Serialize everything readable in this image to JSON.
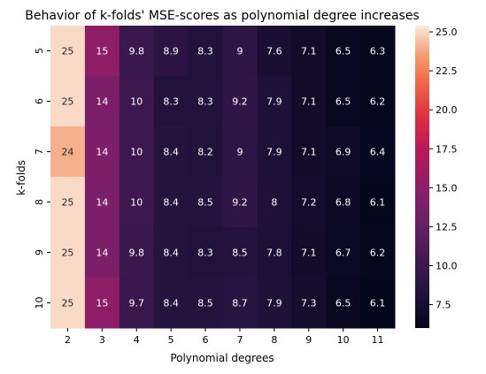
{
  "chart_data": {
    "type": "heatmap",
    "title": "Behavior of k-folds' MSE-scores as polynomial degree increases",
    "xlabel": "Polynomial degrees",
    "ylabel": "k-folds",
    "x": [
      "2",
      "3",
      "4",
      "5",
      "6",
      "7",
      "8",
      "9",
      "10",
      "11"
    ],
    "y": [
      "5",
      "6",
      "7",
      "8",
      "9",
      "10"
    ],
    "values": [
      [
        25,
        15,
        9.8,
        8.9,
        8.3,
        9,
        7.6,
        7.1,
        6.5,
        6.3
      ],
      [
        25,
        14,
        10,
        8.3,
        8.3,
        9.2,
        7.9,
        7.1,
        6.5,
        6.2
      ],
      [
        24,
        14,
        10,
        8.4,
        8.2,
        9,
        7.9,
        7.1,
        6.9,
        6.4
      ],
      [
        25,
        14,
        10,
        8.4,
        8.5,
        9.2,
        8,
        7.2,
        6.8,
        6.1
      ],
      [
        25,
        14,
        9.8,
        8.4,
        8.3,
        8.5,
        7.8,
        7.1,
        6.7,
        6.2
      ],
      [
        25,
        15,
        9.7,
        8.4,
        8.5,
        8.7,
        7.9,
        7.3,
        6.5,
        6.1
      ]
    ],
    "colorbar": {
      "min": 6.0,
      "max": 25.4,
      "ticks": [
        "25.0",
        "22.5",
        "20.0",
        "17.5",
        "15.0",
        "12.5",
        "10.0",
        "7.5"
      ],
      "colormap": "rocket"
    }
  }
}
